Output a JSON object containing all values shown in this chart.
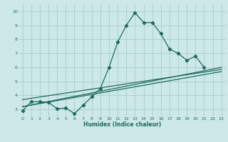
{
  "xlabel": "Humidex (Indice chaleur)",
  "bg_color": "#cce8e8",
  "grid_color": "#aacccc",
  "line_color": "#1e6b5e",
  "xlim": [
    -0.5,
    23.5
  ],
  "ylim": [
    2.5,
    10.5
  ],
  "yticks": [
    3,
    4,
    5,
    6,
    7,
    8,
    9,
    10
  ],
  "xticks": [
    0,
    1,
    2,
    3,
    4,
    5,
    6,
    7,
    8,
    9,
    10,
    11,
    12,
    13,
    14,
    15,
    16,
    17,
    18,
    19,
    20,
    21,
    22,
    23
  ],
  "line1_x": [
    0,
    1,
    2,
    3,
    4,
    5,
    6,
    7,
    8,
    9,
    10,
    11,
    12,
    13,
    14,
    15,
    16,
    17,
    18,
    19,
    20,
    21
  ],
  "line1_y": [
    2.9,
    3.55,
    3.55,
    3.5,
    3.05,
    3.1,
    2.7,
    3.3,
    3.9,
    4.5,
    6.0,
    7.8,
    9.0,
    9.9,
    9.2,
    9.2,
    8.4,
    7.3,
    7.0,
    6.5,
    6.8,
    6.0
  ],
  "line2_x": [
    0,
    23
  ],
  "line2_y": [
    3.2,
    6.0
  ],
  "line3_x": [
    0,
    23
  ],
  "line3_y": [
    3.2,
    5.7
  ],
  "line4_x": [
    0,
    23
  ],
  "line4_y": [
    3.7,
    5.85
  ]
}
